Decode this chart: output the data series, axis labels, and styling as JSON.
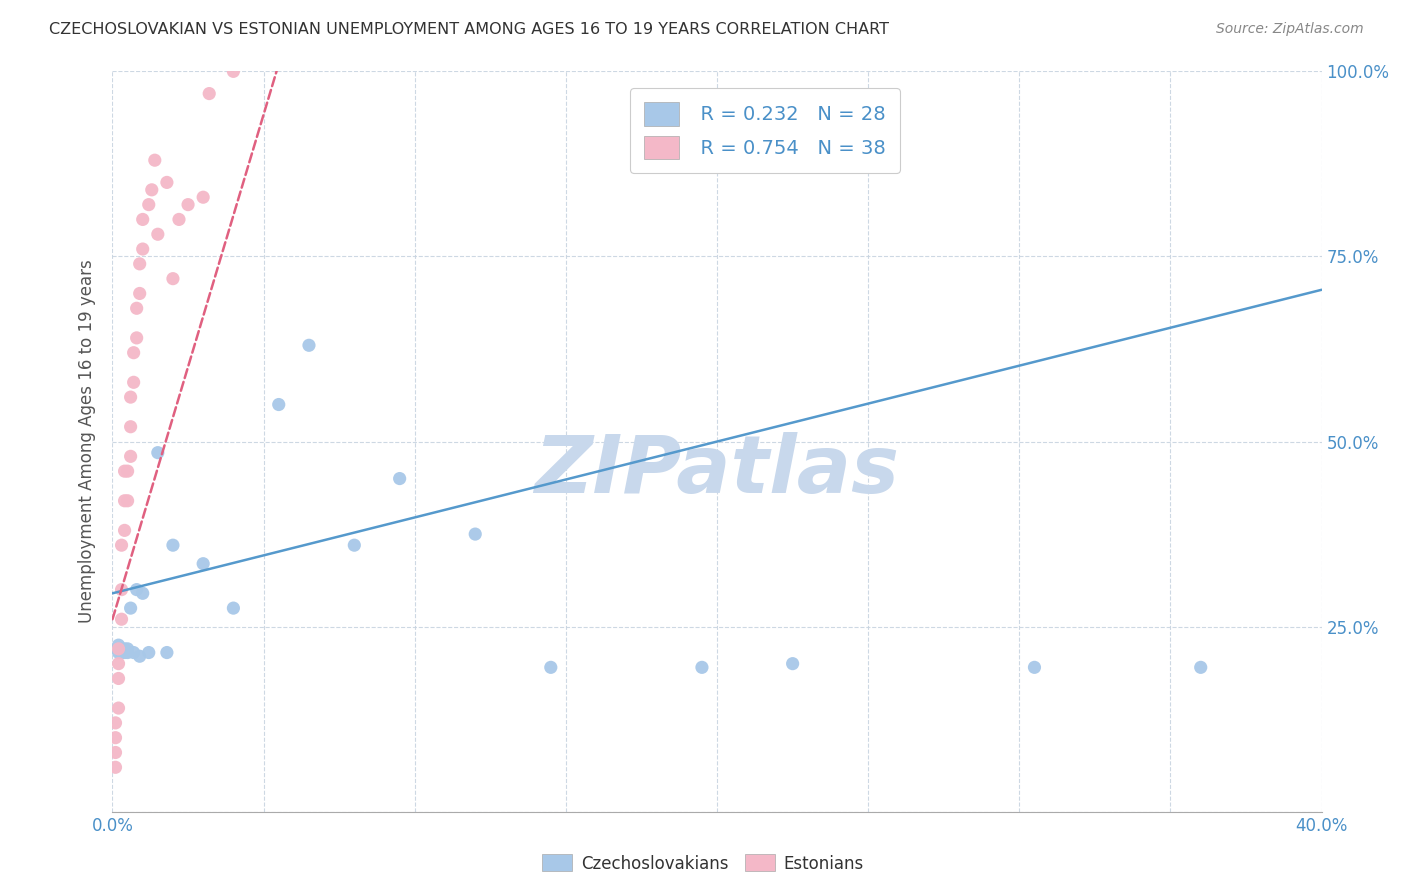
{
  "title": "CZECHOSLOVAKIAN VS ESTONIAN UNEMPLOYMENT AMONG AGES 16 TO 19 YEARS CORRELATION CHART",
  "source": "Source: ZipAtlas.com",
  "ylabel": "Unemployment Among Ages 16 to 19 years",
  "xlabel": "",
  "xlim": [
    0.0,
    0.4
  ],
  "ylim": [
    0.0,
    1.0
  ],
  "xticks": [
    0.0,
    0.05,
    0.1,
    0.15,
    0.2,
    0.25,
    0.3,
    0.35,
    0.4
  ],
  "yticks": [
    0.0,
    0.25,
    0.5,
    0.75,
    1.0
  ],
  "czech_color": "#a8c8e8",
  "estonian_color": "#f4b8c8",
  "czech_line_color": "#5599cc",
  "estonian_line_color": "#e06080",
  "watermark_color": "#c8d8ec",
  "legend_R_czech": "R = 0.232",
  "legend_N_czech": "N = 28",
  "legend_R_estonian": "R = 0.754",
  "legend_N_estonian": "N = 38",
  "legend_text_color": "#4a90c8",
  "czech_scatter_x": [
    0.002,
    0.002,
    0.003,
    0.004,
    0.004,
    0.005,
    0.005,
    0.006,
    0.007,
    0.008,
    0.009,
    0.01,
    0.012,
    0.015,
    0.018,
    0.02,
    0.03,
    0.04,
    0.055,
    0.065,
    0.08,
    0.095,
    0.12,
    0.145,
    0.195,
    0.225,
    0.305,
    0.36
  ],
  "czech_scatter_y": [
    0.215,
    0.225,
    0.215,
    0.215,
    0.22,
    0.215,
    0.22,
    0.275,
    0.215,
    0.3,
    0.21,
    0.295,
    0.215,
    0.485,
    0.215,
    0.36,
    0.335,
    0.275,
    0.55,
    0.63,
    0.36,
    0.45,
    0.375,
    0.195,
    0.195,
    0.2,
    0.195,
    0.195
  ],
  "estonian_scatter_x": [
    0.001,
    0.001,
    0.001,
    0.001,
    0.002,
    0.002,
    0.002,
    0.002,
    0.003,
    0.003,
    0.003,
    0.004,
    0.004,
    0.004,
    0.005,
    0.005,
    0.006,
    0.006,
    0.006,
    0.007,
    0.007,
    0.008,
    0.008,
    0.009,
    0.009,
    0.01,
    0.01,
    0.012,
    0.013,
    0.014,
    0.015,
    0.018,
    0.02,
    0.022,
    0.025,
    0.03,
    0.032,
    0.04
  ],
  "estonian_scatter_y": [
    0.06,
    0.08,
    0.1,
    0.12,
    0.14,
    0.18,
    0.2,
    0.22,
    0.26,
    0.3,
    0.36,
    0.38,
    0.42,
    0.46,
    0.42,
    0.46,
    0.48,
    0.52,
    0.56,
    0.58,
    0.62,
    0.64,
    0.68,
    0.7,
    0.74,
    0.76,
    0.8,
    0.82,
    0.84,
    0.88,
    0.78,
    0.85,
    0.72,
    0.8,
    0.82,
    0.83,
    0.97,
    1.0
  ],
  "czech_trend_x": [
    0.0,
    0.4
  ],
  "czech_trend_y": [
    0.295,
    0.705
  ],
  "estonian_trend_x": [
    0.0,
    0.055
  ],
  "estonian_trend_y": [
    0.26,
    1.01
  ],
  "bg_color": "#ffffff",
  "grid_color": "#c8d4e0"
}
